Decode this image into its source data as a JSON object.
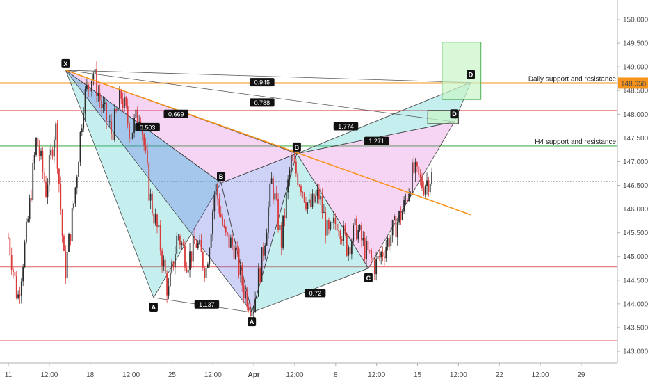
{
  "chart_data": {
    "type": "candlestick",
    "title": "",
    "xlabel": "",
    "ylabel": "",
    "ylim": [
      142.75,
      150.35
    ],
    "grid": false,
    "x_ticks": [
      "11",
      "12:00",
      "18",
      "12:00",
      "25",
      "12:00",
      "Apr",
      "12:00",
      "8",
      "12:00",
      "15",
      "12:00",
      "22",
      "12:00",
      "29"
    ],
    "y_ticks": [
      "143.000",
      "143.500",
      "144.000",
      "144.500",
      "145.000",
      "145.500",
      "146.000",
      "146.500",
      "147.000",
      "147.500",
      "148.000",
      "148.500",
      "149.000",
      "149.500",
      "150.000"
    ],
    "y_ticks_values": [
      143.0,
      143.5,
      144.0,
      144.5,
      145.0,
      145.5,
      146.0,
      146.5,
      147.0,
      147.5,
      148.0,
      148.5,
      149.0,
      149.5,
      150.0
    ],
    "last_price": "148.658",
    "price_path": [
      145.4,
      144.1,
      145.6,
      147.5,
      146.4,
      147.8,
      144.6,
      146.2,
      148.3,
      148.9,
      148.1,
      147.6,
      148.4,
      147.6,
      148.1,
      146.3,
      145.4,
      144.2,
      145.5,
      144.9,
      145.3,
      144.7,
      146.5,
      145.4,
      145.2,
      144.3,
      143.9,
      145.0,
      146.6,
      145.3,
      147.0,
      146.6,
      146.0,
      146.3,
      145.4,
      145.8,
      145.2,
      145.6,
      145.1,
      144.8,
      145.2,
      145.6,
      146.0,
      146.8,
      146.5,
      146.7
    ],
    "horizontal_levels": [
      {
        "value": 148.658,
        "color": "#f7931a",
        "label": "Daily support and resistance"
      },
      {
        "value": 148.08,
        "color": "#e57373",
        "label": ""
      },
      {
        "value": 147.33,
        "color": "#4caf50",
        "label": "H4 support and resistance"
      },
      {
        "value": 146.58,
        "color": "#777777",
        "label": ""
      },
      {
        "value": 144.78,
        "color": "#e57373",
        "label": ""
      },
      {
        "value": 143.22,
        "color": "#e57373",
        "label": ""
      }
    ],
    "trendline": {
      "start": [
        "12:00",
        148.93
      ],
      "end": [
        "12:00",
        145.88
      ],
      "color": "#f7931a"
    },
    "pattern_points": {
      "X": 148.93,
      "A1": 144.13,
      "B1": 146.55,
      "A2": 143.82,
      "B2": 147.17,
      "C": 144.75,
      "D1": 148.67,
      "D2": 147.84
    },
    "point_labels": {
      "X": "X",
      "A1": "A",
      "B1": "B",
      "A2": "A",
      "B2": "B",
      "C": "C",
      "D1": "D",
      "D2": "D"
    },
    "ratios": [
      "0.945",
      "0.788",
      "0.669",
      "0.503",
      "1.137",
      "0.72",
      "1.774",
      "1.271"
    ],
    "target_zones": [
      {
        "from": 148.31,
        "to": 149.52,
        "color": "#c8f5c8"
      },
      {
        "from": 147.8,
        "to": 148.08,
        "color": "#c8f5c8"
      }
    ]
  }
}
